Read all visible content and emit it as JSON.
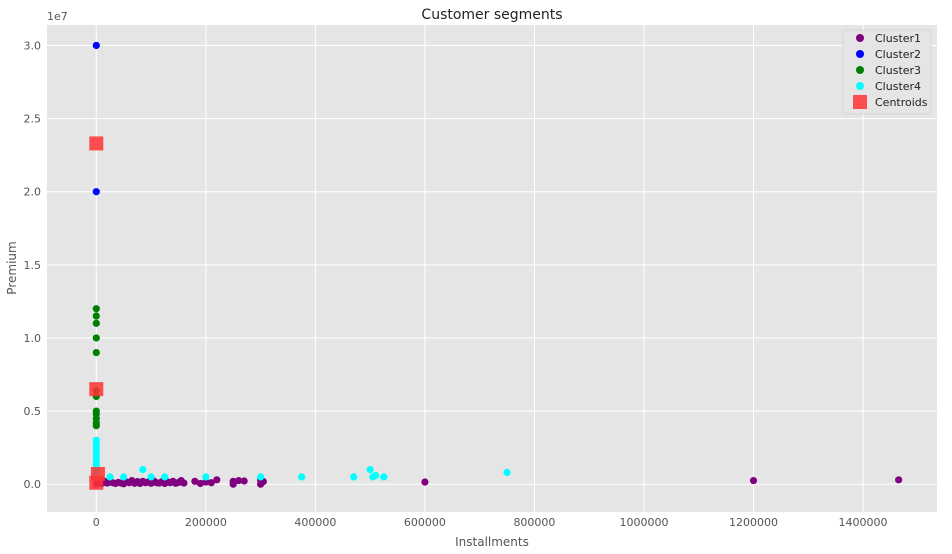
{
  "chart_data": {
    "type": "scatter",
    "title": "Customer segments",
    "xlabel": "Installments",
    "ylabel": "Premium",
    "y_offset_label": "1e7",
    "xlim": [
      -90000,
      1535000
    ],
    "ylim": [
      -1900000,
      31400000
    ],
    "xticks": [
      0,
      200000,
      400000,
      600000,
      800000,
      1000000,
      1200000,
      1400000
    ],
    "xtick_labels": [
      "0",
      "200000",
      "400000",
      "600000",
      "800000",
      "1000000",
      "1200000",
      "1400000"
    ],
    "yticks": [
      0,
      5000000,
      10000000,
      15000000,
      20000000,
      25000000,
      30000000
    ],
    "ytick_labels": [
      "0.0",
      "0.5",
      "1.0",
      "1.5",
      "2.0",
      "2.5",
      "3.0"
    ],
    "grid": true,
    "legend_position": "top-right",
    "series": [
      {
        "name": "Cluster1",
        "color": "#800080",
        "marker": "circle",
        "points": [
          [
            0,
            0
          ],
          [
            2000,
            30000
          ],
          [
            5000,
            100000
          ],
          [
            10000,
            50000
          ],
          [
            15000,
            200000
          ],
          [
            20000,
            80000
          ],
          [
            25000,
            150000
          ],
          [
            30000,
            100000
          ],
          [
            35000,
            50000
          ],
          [
            40000,
            120000
          ],
          [
            45000,
            80000
          ],
          [
            50000,
            30000
          ],
          [
            55000,
            150000
          ],
          [
            60000,
            100000
          ],
          [
            65000,
            250000
          ],
          [
            70000,
            60000
          ],
          [
            75000,
            180000
          ],
          [
            80000,
            50000
          ],
          [
            85000,
            200000
          ],
          [
            90000,
            100000
          ],
          [
            95000,
            150000
          ],
          [
            100000,
            60000
          ],
          [
            105000,
            220000
          ],
          [
            110000,
            100000
          ],
          [
            115000,
            80000
          ],
          [
            120000,
            180000
          ],
          [
            125000,
            50000
          ],
          [
            130000,
            150000
          ],
          [
            135000,
            100000
          ],
          [
            140000,
            200000
          ],
          [
            145000,
            60000
          ],
          [
            150000,
            120000
          ],
          [
            155000,
            250000
          ],
          [
            160000,
            80000
          ],
          [
            180000,
            200000
          ],
          [
            190000,
            50000
          ],
          [
            200000,
            150000
          ],
          [
            210000,
            100000
          ],
          [
            220000,
            300000
          ],
          [
            250000,
            200000
          ],
          [
            250000,
            0
          ],
          [
            260000,
            250000
          ],
          [
            270000,
            220000
          ],
          [
            300000,
            0
          ],
          [
            300000,
            300000
          ],
          [
            305000,
            180000
          ],
          [
            600000,
            150000
          ],
          [
            1200000,
            250000
          ],
          [
            1465000,
            300000
          ]
        ]
      },
      {
        "name": "Cluster2",
        "color": "#0000ff",
        "marker": "circle",
        "points": [
          [
            0,
            30000000
          ],
          [
            0,
            20000000
          ]
        ]
      },
      {
        "name": "Cluster3",
        "color": "#008000",
        "marker": "circle",
        "points": [
          [
            0,
            12000000
          ],
          [
            0,
            11500000
          ],
          [
            0,
            11000000
          ],
          [
            0,
            10000000
          ],
          [
            0,
            9000000
          ],
          [
            0,
            6400000
          ],
          [
            0,
            6000000
          ],
          [
            0,
            5000000
          ],
          [
            0,
            4800000
          ],
          [
            0,
            4500000
          ],
          [
            0,
            4200000
          ],
          [
            0,
            4000000
          ]
        ]
      },
      {
        "name": "Cluster4",
        "color": "#00ffff",
        "marker": "circle",
        "points": [
          [
            0,
            3000000
          ],
          [
            0,
            2800000
          ],
          [
            0,
            2500000
          ],
          [
            0,
            2200000
          ],
          [
            0,
            2000000
          ],
          [
            0,
            1800000
          ],
          [
            0,
            1500000
          ],
          [
            0,
            1300000
          ],
          [
            0,
            1000000
          ],
          [
            0,
            800000
          ],
          [
            25000,
            500000
          ],
          [
            50000,
            500000
          ],
          [
            85000,
            1000000
          ],
          [
            100000,
            500000
          ],
          [
            125000,
            500000
          ],
          [
            200000,
            500000
          ],
          [
            300000,
            500000
          ],
          [
            375000,
            500000
          ],
          [
            470000,
            500000
          ],
          [
            500000,
            1000000
          ],
          [
            505000,
            500000
          ],
          [
            510000,
            600000
          ],
          [
            525000,
            500000
          ],
          [
            750000,
            800000
          ]
        ]
      },
      {
        "name": "Centroids",
        "color": "#ff3333",
        "marker": "square",
        "points": [
          [
            0,
            23300000
          ],
          [
            0,
            6500000
          ],
          [
            3000,
            700000
          ],
          [
            0,
            100000
          ]
        ]
      }
    ]
  }
}
